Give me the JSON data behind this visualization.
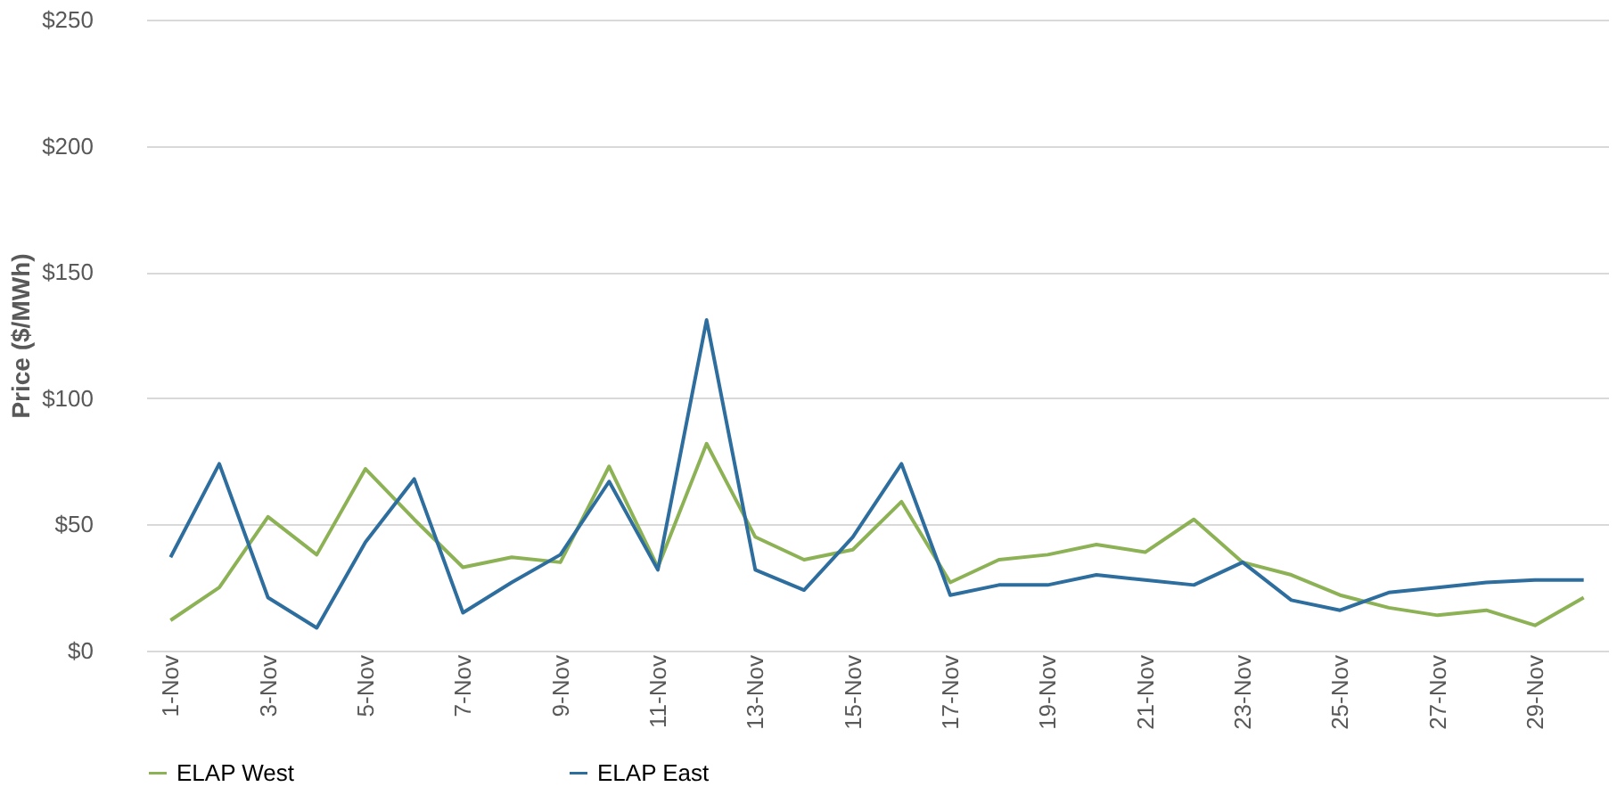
{
  "chart_data": {
    "type": "line",
    "ylabel": "Price ($/MWh)",
    "categories": [
      "1-Nov",
      null,
      "3-Nov",
      null,
      "5-Nov",
      null,
      "7-Nov",
      null,
      "9-Nov",
      null,
      "11-Nov",
      null,
      "13-Nov",
      null,
      "15-Nov",
      null,
      "17-Nov",
      null,
      "19-Nov",
      null,
      "21-Nov",
      null,
      "23-Nov",
      null,
      "25-Nov",
      null,
      "27-Nov",
      null,
      "29-Nov",
      null
    ],
    "series": [
      {
        "name": "ELAP West",
        "color": "#8db255",
        "values": [
          12,
          25,
          53,
          38,
          72,
          52,
          33,
          37,
          35,
          73,
          33,
          82,
          45,
          36,
          40,
          59,
          27,
          36,
          38,
          42,
          39,
          52,
          35,
          30,
          22,
          17,
          14,
          16,
          10,
          21
        ]
      },
      {
        "name": "ELAP East",
        "color": "#2e6e9e",
        "values": [
          37,
          74,
          21,
          9,
          43,
          68,
          15,
          27,
          38,
          67,
          32,
          131,
          32,
          24,
          45,
          74,
          22,
          26,
          26,
          30,
          28,
          26,
          35,
          20,
          16,
          23,
          25,
          27,
          28,
          28
        ]
      }
    ],
    "ylim": [
      0,
      250
    ],
    "yticks": [
      {
        "value": 0,
        "label": "$0"
      },
      {
        "value": 50,
        "label": "$50"
      },
      {
        "value": 100,
        "label": "$100"
      },
      {
        "value": 150,
        "label": "$150"
      },
      {
        "value": 200,
        "label": "$200"
      },
      {
        "value": 250,
        "label": "$250"
      }
    ],
    "grid": "y",
    "legend": "bottom",
    "marker": "none",
    "line_style": "solid"
  }
}
